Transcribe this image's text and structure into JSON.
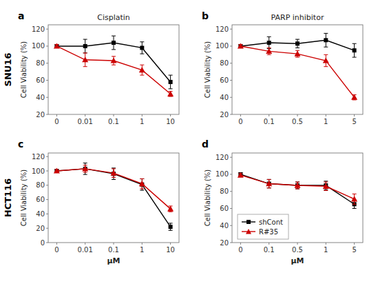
{
  "chart_data": [
    {
      "type": "line",
      "title": "Cisplatin",
      "y_label": "Cell Viability (%)",
      "annotations": [
        "a",
        "SNU16"
      ],
      "categories": [
        "0",
        "0.01",
        "0.1",
        "1",
        "10"
      ],
      "series": [
        {
          "name": "shCont",
          "color": "#000000",
          "marker": "square",
          "values": [
            100,
            100,
            104,
            98,
            58
          ],
          "errors": [
            2,
            8,
            8,
            7,
            8
          ]
        },
        {
          "name": "R#35",
          "color": "#cc0000",
          "marker": "triangle",
          "values": [
            100,
            84,
            83,
            72,
            44
          ],
          "errors": [
            2,
            8,
            5,
            6,
            3
          ]
        }
      ],
      "ylim": [
        20,
        125
      ],
      "yticks": [
        20,
        40,
        60,
        80,
        100,
        120
      ]
    },
    {
      "type": "line",
      "title": "PARP inhibitor",
      "y_label": "Cell Viability (%)",
      "annotations": [
        "b"
      ],
      "categories": [
        "0",
        "0.1",
        "0.5",
        "1",
        "5"
      ],
      "series": [
        {
          "name": "shCont",
          "color": "#000000",
          "marker": "square",
          "values": [
            100,
            104,
            103,
            107,
            95
          ],
          "errors": [
            2,
            7,
            5,
            8,
            8
          ]
        },
        {
          "name": "R#35",
          "color": "#cc0000",
          "marker": "triangle",
          "values": [
            100,
            94,
            91,
            83,
            40
          ],
          "errors": [
            2,
            4,
            4,
            7,
            3
          ]
        }
      ],
      "ylim": [
        20,
        125
      ],
      "yticks": [
        20,
        40,
        60,
        80,
        100,
        120
      ]
    },
    {
      "type": "line",
      "x_label": "μM",
      "y_label": "Cell Viability (%)",
      "annotations": [
        "c",
        "HCT116"
      ],
      "categories": [
        "0",
        "0.01",
        "0.1",
        "1",
        "10"
      ],
      "series": [
        {
          "name": "shCont",
          "color": "#000000",
          "marker": "square",
          "values": [
            100,
            103,
            96,
            81,
            22
          ],
          "errors": [
            2,
            8,
            8,
            8,
            5
          ]
        },
        {
          "name": "R#35",
          "color": "#cc0000",
          "marker": "triangle",
          "values": [
            100,
            103,
            97,
            82,
            47
          ],
          "errors": [
            2,
            5,
            6,
            7,
            4
          ]
        }
      ],
      "ylim": [
        0,
        125
      ],
      "yticks": [
        0,
        20,
        40,
        60,
        80,
        100,
        120
      ]
    },
    {
      "type": "line",
      "x_label": "μM",
      "y_label": "Cell Viability (%)",
      "annotations": [
        "d"
      ],
      "categories": [
        "0",
        "0.1",
        "0.5",
        "1",
        "5"
      ],
      "series": [
        {
          "name": "shCont",
          "color": "#000000",
          "marker": "square",
          "values": [
            100,
            89,
            87,
            87,
            65
          ],
          "errors": [
            2,
            5,
            4,
            5,
            5
          ]
        },
        {
          "name": "R#35",
          "color": "#cc0000",
          "marker": "triangle",
          "values": [
            99,
            89,
            87,
            86,
            71
          ],
          "errors": [
            2,
            5,
            4,
            5,
            6
          ]
        }
      ],
      "ylim": [
        20,
        125
      ],
      "yticks": [
        20,
        40,
        60,
        80,
        100,
        120
      ],
      "legend": "lower left"
    }
  ]
}
